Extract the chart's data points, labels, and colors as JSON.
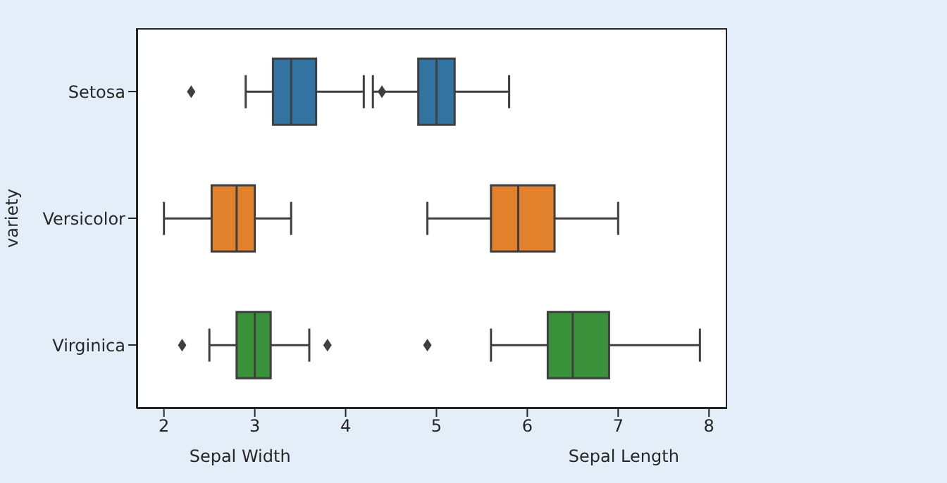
{
  "chart_data": {
    "type": "box",
    "orientation": "horizontal",
    "ylabel": "variety",
    "xlabel": "Sepal Width",
    "annotations": [
      "Sepal Length"
    ],
    "categories": [
      "Setosa",
      "Versicolor",
      "Virginica"
    ],
    "xlim": [
      1.7,
      8.2
    ],
    "xticks": [
      2,
      3,
      4,
      5,
      6,
      7,
      8
    ],
    "grid": false,
    "series": [
      {
        "colors": [
          "#3274a1",
          "#e1812c",
          "#3a923a"
        ],
        "boxes": [
          {
            "low": 2.9,
            "q1": 3.2,
            "median": 3.4,
            "q3": 3.675,
            "high": 4.2,
            "outliers": [
              2.3,
              4.4
            ]
          },
          {
            "low": 2.0,
            "q1": 2.525,
            "median": 2.8,
            "q3": 3.0,
            "high": 3.4
          },
          {
            "low": 2.5,
            "q1": 2.8,
            "median": 3.0,
            "q3": 3.175,
            "high": 3.6,
            "outliers": [
              2.2,
              3.8
            ]
          }
        ]
      },
      {
        "colors": [
          "#3274a1",
          "#e1812c",
          "#3a923a"
        ],
        "boxes": [
          {
            "low": 4.3,
            "q1": 4.8,
            "median": 5.0,
            "q3": 5.2,
            "high": 5.8
          },
          {
            "low": 4.9,
            "q1": 5.6,
            "median": 5.9,
            "q3": 6.3,
            "high": 7.0
          },
          {
            "low": 5.6,
            "q1": 6.225,
            "median": 6.5,
            "q3": 6.9,
            "high": 7.9,
            "outliers": [
              4.9
            ]
          }
        ]
      }
    ]
  }
}
